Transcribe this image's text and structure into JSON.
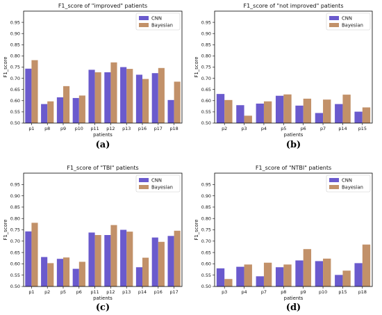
{
  "colors": {
    "cnn": "#6a5acd",
    "bayesian": "#c29169",
    "axis": "#000000"
  },
  "chart_data": [
    {
      "type": "bar",
      "label": "(a)",
      "title": "F1_score of \"improved\" patients",
      "xlabel": "patients",
      "ylabel": "F1_score",
      "ylim": [
        0.5,
        1.0
      ],
      "yticks": [
        "0.50",
        "0.55",
        "0.60",
        "0.65",
        "0.70",
        "0.75",
        "0.80",
        "0.85",
        "0.90",
        "0.95"
      ],
      "legend_position": "top-right",
      "categories": [
        "p1",
        "p8",
        "p9",
        "p10",
        "p11",
        "p12",
        "p13",
        "p16",
        "p17",
        "p18"
      ],
      "series": [
        {
          "name": "CNN",
          "values": [
            0.743,
            0.585,
            0.615,
            0.612,
            0.738,
            0.727,
            0.75,
            0.716,
            0.723,
            0.603
          ]
        },
        {
          "name": "Bayesian",
          "values": [
            0.781,
            0.597,
            0.665,
            0.623,
            0.727,
            0.771,
            0.742,
            0.697,
            0.746,
            0.685
          ]
        }
      ]
    },
    {
      "type": "bar",
      "label": "(b)",
      "title": "F1_score of \"not improved\" patients",
      "xlabel": "patients",
      "ylabel": "F1_score",
      "ylim": [
        0.5,
        1.0
      ],
      "yticks": [
        "0.50",
        "0.55",
        "0.60",
        "0.65",
        "0.70",
        "0.75",
        "0.80",
        "0.85",
        "0.90",
        "0.95"
      ],
      "legend_position": "top-right",
      "categories": [
        "p2",
        "p3",
        "p4",
        "p5",
        "p6",
        "p7",
        "p14",
        "p15"
      ],
      "series": [
        {
          "name": "CNN",
          "values": [
            0.63,
            0.58,
            0.587,
            0.622,
            0.578,
            0.545,
            0.585,
            0.551
          ]
        },
        {
          "name": "Bayesian",
          "values": [
            0.603,
            0.533,
            0.597,
            0.628,
            0.609,
            0.605,
            0.627,
            0.57
          ]
        }
      ]
    },
    {
      "type": "bar",
      "label": "(c)",
      "title": "F1_score of \"TBI\" patients",
      "xlabel": "patients",
      "ylabel": "F1_score",
      "ylim": [
        0.5,
        1.0
      ],
      "yticks": [
        "0.50",
        "0.55",
        "0.60",
        "0.65",
        "0.70",
        "0.75",
        "0.80",
        "0.85",
        "0.90",
        "0.95"
      ],
      "legend_position": "top-right",
      "categories": [
        "p1",
        "p2",
        "p5",
        "p6",
        "p11",
        "p12",
        "p13",
        "p14",
        "p16",
        "p17"
      ],
      "series": [
        {
          "name": "CNN",
          "values": [
            0.743,
            0.63,
            0.622,
            0.578,
            0.738,
            0.727,
            0.75,
            0.585,
            0.716,
            0.723
          ]
        },
        {
          "name": "Bayesian",
          "values": [
            0.781,
            0.603,
            0.628,
            0.609,
            0.727,
            0.771,
            0.742,
            0.627,
            0.697,
            0.746
          ]
        }
      ]
    },
    {
      "type": "bar",
      "label": "(d)",
      "title": "F1_score of \"NTBI\" patients",
      "xlabel": "patients",
      "ylabel": "F1_score",
      "ylim": [
        0.5,
        1.0
      ],
      "yticks": [
        "0.50",
        "0.55",
        "0.60",
        "0.65",
        "0.70",
        "0.75",
        "0.80",
        "0.85",
        "0.90",
        "0.95"
      ],
      "legend_position": "top-right",
      "categories": [
        "p3",
        "p4",
        "p7",
        "p8",
        "p9",
        "p10",
        "p15",
        "p18"
      ],
      "series": [
        {
          "name": "CNN",
          "values": [
            0.58,
            0.587,
            0.545,
            0.585,
            0.615,
            0.612,
            0.551,
            0.603
          ]
        },
        {
          "name": "Bayesian",
          "values": [
            0.533,
            0.597,
            0.605,
            0.597,
            0.665,
            0.623,
            0.57,
            0.685
          ]
        }
      ]
    }
  ]
}
